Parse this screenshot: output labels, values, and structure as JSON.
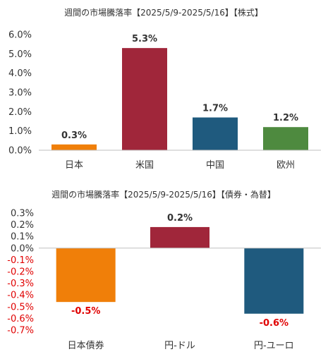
{
  "chart_data": [
    {
      "type": "bar",
      "title": "週間の市場騰落率【2025/5/9-2025/5/16】【株式】",
      "categories": [
        "日本",
        "米国",
        "中国",
        "欧州"
      ],
      "values": [
        0.3,
        5.3,
        1.7,
        1.2
      ],
      "value_labels": [
        "0.3%",
        "5.3%",
        "1.7%",
        "1.2%"
      ],
      "colors": [
        "#f07f09",
        "#a0263a",
        "#1f5a7e",
        "#4e8a3f"
      ],
      "yticks": [
        "0.0%",
        "1.0%",
        "2.0%",
        "3.0%",
        "4.0%",
        "5.0%",
        "6.0%"
      ],
      "ylim": [
        0,
        6
      ],
      "grid": false
    },
    {
      "type": "bar",
      "title": "週間の市場騰落率【2025/5/9-2025/5/16】【債券・為替】",
      "categories": [
        "日本債券",
        "円-ドル",
        "円-ユーロ"
      ],
      "values": [
        -0.46,
        0.18,
        -0.56
      ],
      "value_labels": [
        "-0.5%",
        "0.2%",
        "-0.6%"
      ],
      "colors": [
        "#f07f09",
        "#a0263a",
        "#1f5a7e"
      ],
      "yticks": [
        "0.3%",
        "0.2%",
        "0.1%",
        "0.0%",
        "-0.1%",
        "-0.2%",
        "-0.3%",
        "-0.4%",
        "-0.5%",
        "-0.6%",
        "-0.7%"
      ],
      "ylim": [
        -0.7,
        0.3
      ],
      "negative_label_color": "#e00000",
      "grid": false
    }
  ]
}
